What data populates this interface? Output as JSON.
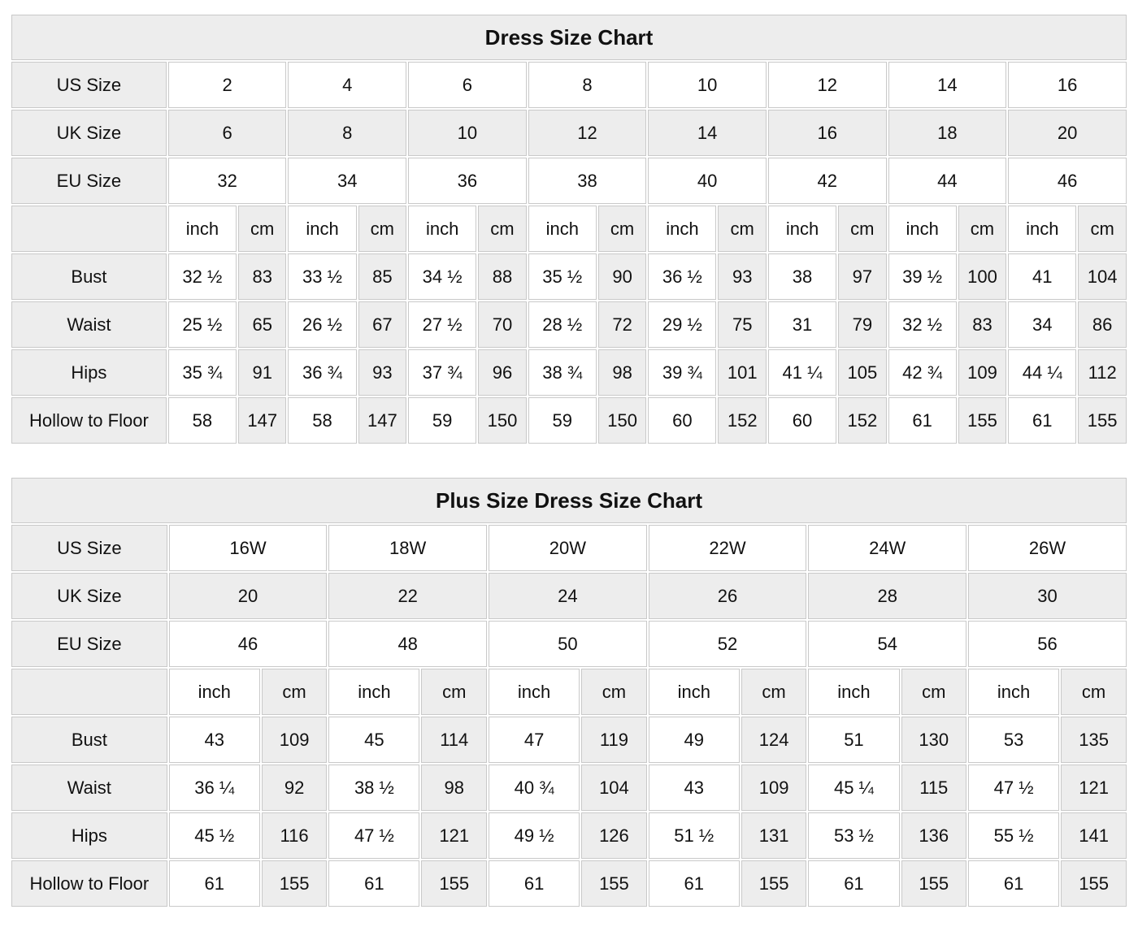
{
  "colors": {
    "page_background": "#ffffff",
    "shaded_cell": "#ededed",
    "white_cell": "#ffffff",
    "grid_border": "#c9c9c9",
    "text": "#111111"
  },
  "units": {
    "inch": "inch",
    "cm": "cm"
  },
  "chart_data": [
    {
      "type": "table",
      "name": "dress-size-chart",
      "title": "Dress Size Chart",
      "size_rows": [
        {
          "label": "US Size",
          "shaded": false,
          "values": [
            "2",
            "4",
            "6",
            "8",
            "10",
            "12",
            "14",
            "16"
          ]
        },
        {
          "label": "UK Size",
          "shaded": true,
          "values": [
            "6",
            "8",
            "10",
            "12",
            "14",
            "16",
            "18",
            "20"
          ]
        },
        {
          "label": "EU Size",
          "shaded": false,
          "values": [
            "32",
            "34",
            "36",
            "38",
            "40",
            "42",
            "44",
            "46"
          ]
        }
      ],
      "unit_headers": [
        "inch",
        "cm"
      ],
      "measure_rows": [
        {
          "label": "Bust",
          "pairs": [
            [
              "32 ½",
              "83"
            ],
            [
              "33 ½",
              "85"
            ],
            [
              "34 ½",
              "88"
            ],
            [
              "35 ½",
              "90"
            ],
            [
              "36 ½",
              "93"
            ],
            [
              "38",
              "97"
            ],
            [
              "39 ½",
              "100"
            ],
            [
              "41",
              "104"
            ]
          ]
        },
        {
          "label": "Waist",
          "pairs": [
            [
              "25 ½",
              "65"
            ],
            [
              "26 ½",
              "67"
            ],
            [
              "27 ½",
              "70"
            ],
            [
              "28 ½",
              "72"
            ],
            [
              "29 ½",
              "75"
            ],
            [
              "31",
              "79"
            ],
            [
              "32 ½",
              "83"
            ],
            [
              "34",
              "86"
            ]
          ]
        },
        {
          "label": "Hips",
          "pairs": [
            [
              "35 ¾",
              "91"
            ],
            [
              "36 ¾",
              "93"
            ],
            [
              "37 ¾",
              "96"
            ],
            [
              "38 ¾",
              "98"
            ],
            [
              "39 ¾",
              "101"
            ],
            [
              "41 ¼",
              "105"
            ],
            [
              "42 ¾",
              "109"
            ],
            [
              "44 ¼",
              "112"
            ]
          ]
        },
        {
          "label": "Hollow to Floor",
          "pairs": [
            [
              "58",
              "147"
            ],
            [
              "58",
              "147"
            ],
            [
              "59",
              "150"
            ],
            [
              "59",
              "150"
            ],
            [
              "60",
              "152"
            ],
            [
              "60",
              "152"
            ],
            [
              "61",
              "155"
            ],
            [
              "61",
              "155"
            ]
          ]
        }
      ]
    },
    {
      "type": "table",
      "name": "plus-size-dress-size-chart",
      "title": "Plus Size Dress Size Chart",
      "size_rows": [
        {
          "label": "US Size",
          "shaded": false,
          "values": [
            "16W",
            "18W",
            "20W",
            "22W",
            "24W",
            "26W"
          ]
        },
        {
          "label": "UK Size",
          "shaded": true,
          "values": [
            "20",
            "22",
            "24",
            "26",
            "28",
            "30"
          ]
        },
        {
          "label": "EU Size",
          "shaded": false,
          "values": [
            "46",
            "48",
            "50",
            "52",
            "54",
            "56"
          ]
        }
      ],
      "unit_headers": [
        "inch",
        "cm"
      ],
      "measure_rows": [
        {
          "label": "Bust",
          "pairs": [
            [
              "43",
              "109"
            ],
            [
              "45",
              "114"
            ],
            [
              "47",
              "119"
            ],
            [
              "49",
              "124"
            ],
            [
              "51",
              "130"
            ],
            [
              "53",
              "135"
            ]
          ]
        },
        {
          "label": "Waist",
          "pairs": [
            [
              "36 ¼",
              "92"
            ],
            [
              "38 ½",
              "98"
            ],
            [
              "40 ¾",
              "104"
            ],
            [
              "43",
              "109"
            ],
            [
              "45 ¼",
              "115"
            ],
            [
              "47 ½",
              "121"
            ]
          ]
        },
        {
          "label": "Hips",
          "pairs": [
            [
              "45 ½",
              "116"
            ],
            [
              "47 ½",
              "121"
            ],
            [
              "49 ½",
              "126"
            ],
            [
              "51 ½",
              "131"
            ],
            [
              "53 ½",
              "136"
            ],
            [
              "55 ½",
              "141"
            ]
          ]
        },
        {
          "label": "Hollow to Floor",
          "pairs": [
            [
              "61",
              "155"
            ],
            [
              "61",
              "155"
            ],
            [
              "61",
              "155"
            ],
            [
              "61",
              "155"
            ],
            [
              "61",
              "155"
            ],
            [
              "61",
              "155"
            ]
          ]
        }
      ]
    }
  ]
}
